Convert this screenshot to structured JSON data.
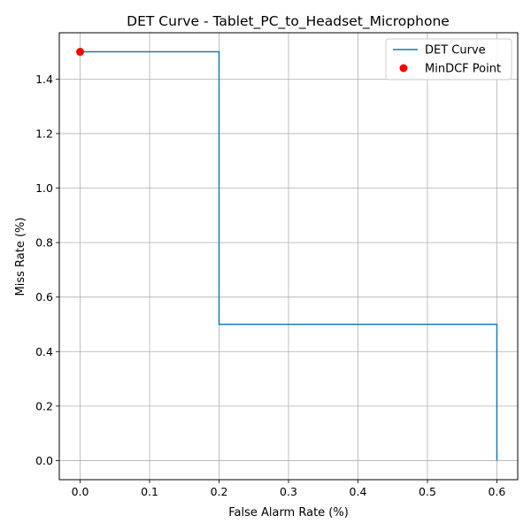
{
  "chart_data": {
    "type": "line",
    "title": "DET Curve - Tablet_PC_to_Headset_Microphone",
    "xlabel": "False Alarm Rate (%)",
    "ylabel": "Miss Rate (%)",
    "xlim": [
      -0.03,
      0.63
    ],
    "ylim": [
      -0.07,
      1.57
    ],
    "x_ticks": [
      0.0,
      0.1,
      0.2,
      0.3,
      0.4,
      0.5,
      0.6
    ],
    "x_tick_labels": [
      "0.0",
      "0.1",
      "0.2",
      "0.3",
      "0.4",
      "0.5",
      "0.6"
    ],
    "y_ticks": [
      0.0,
      0.2,
      0.4,
      0.6,
      0.8,
      1.0,
      1.2,
      1.4
    ],
    "y_tick_labels": [
      "0.0",
      "0.2",
      "0.4",
      "0.6",
      "0.8",
      "1.0",
      "1.2",
      "1.4"
    ],
    "grid": true,
    "legend_position": "top-right",
    "series": [
      {
        "name": "DET Curve",
        "kind": "line",
        "color": "#1f77b4",
        "x": [
          0.0,
          0.2,
          0.2,
          0.6,
          0.6
        ],
        "y": [
          1.5,
          1.5,
          0.5,
          0.5,
          0.0
        ]
      },
      {
        "name": "MinDCF Point",
        "kind": "scatter",
        "color": "#ff0000",
        "x": [
          0.0
        ],
        "y": [
          1.5
        ]
      }
    ]
  }
}
